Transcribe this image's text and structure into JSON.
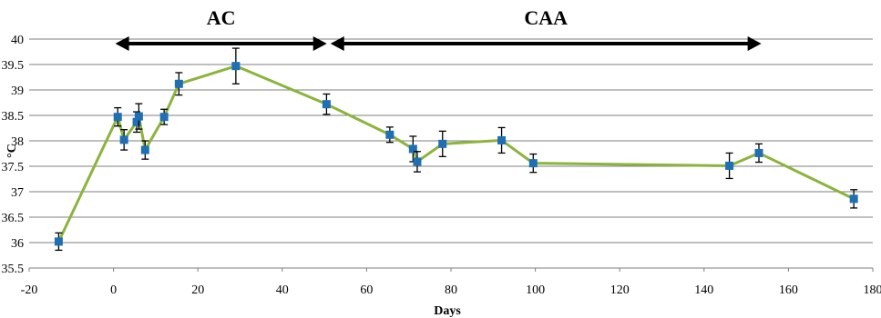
{
  "chart_data": {
    "type": "line",
    "xlabel": "Days",
    "ylabel": "°C",
    "xlim": [
      -20,
      180
    ],
    "ylim": [
      35.5,
      40
    ],
    "x_ticks": [
      "-20",
      "0",
      "20",
      "40",
      "60",
      "80",
      "100",
      "120",
      "140",
      "160",
      "180"
    ],
    "y_ticks": [
      "35.5",
      "36",
      "36.5",
      "37",
      "37.5",
      "38",
      "38.5",
      "39",
      "39.5",
      "40"
    ],
    "grid": "horizontal",
    "line_color": "#8cb43c",
    "marker_color": "#1f6fb4",
    "series": [
      {
        "x": [
          -13,
          1,
          2.5,
          5.5,
          6,
          7.5,
          12,
          15.5,
          29,
          50.5,
          65.5,
          71,
          72,
          78,
          92,
          99.5,
          146,
          153,
          175.5
        ],
        "y": [
          36.02,
          38.47,
          38.02,
          38.37,
          38.48,
          37.82,
          38.47,
          39.12,
          39.47,
          38.72,
          38.12,
          37.84,
          37.59,
          37.94,
          38.01,
          37.56,
          37.51,
          37.76,
          36.86
        ],
        "err": [
          0.17,
          0.18,
          0.2,
          0.2,
          0.25,
          0.18,
          0.15,
          0.22,
          0.35,
          0.2,
          0.15,
          0.25,
          0.2,
          0.25,
          0.25,
          0.18,
          0.25,
          0.18,
          0.18
        ]
      }
    ],
    "annotations": [
      {
        "label": "AC",
        "x_start": 0,
        "x_end": 51
      },
      {
        "label": "CAA",
        "x_start": 51,
        "x_end": 154
      }
    ]
  }
}
